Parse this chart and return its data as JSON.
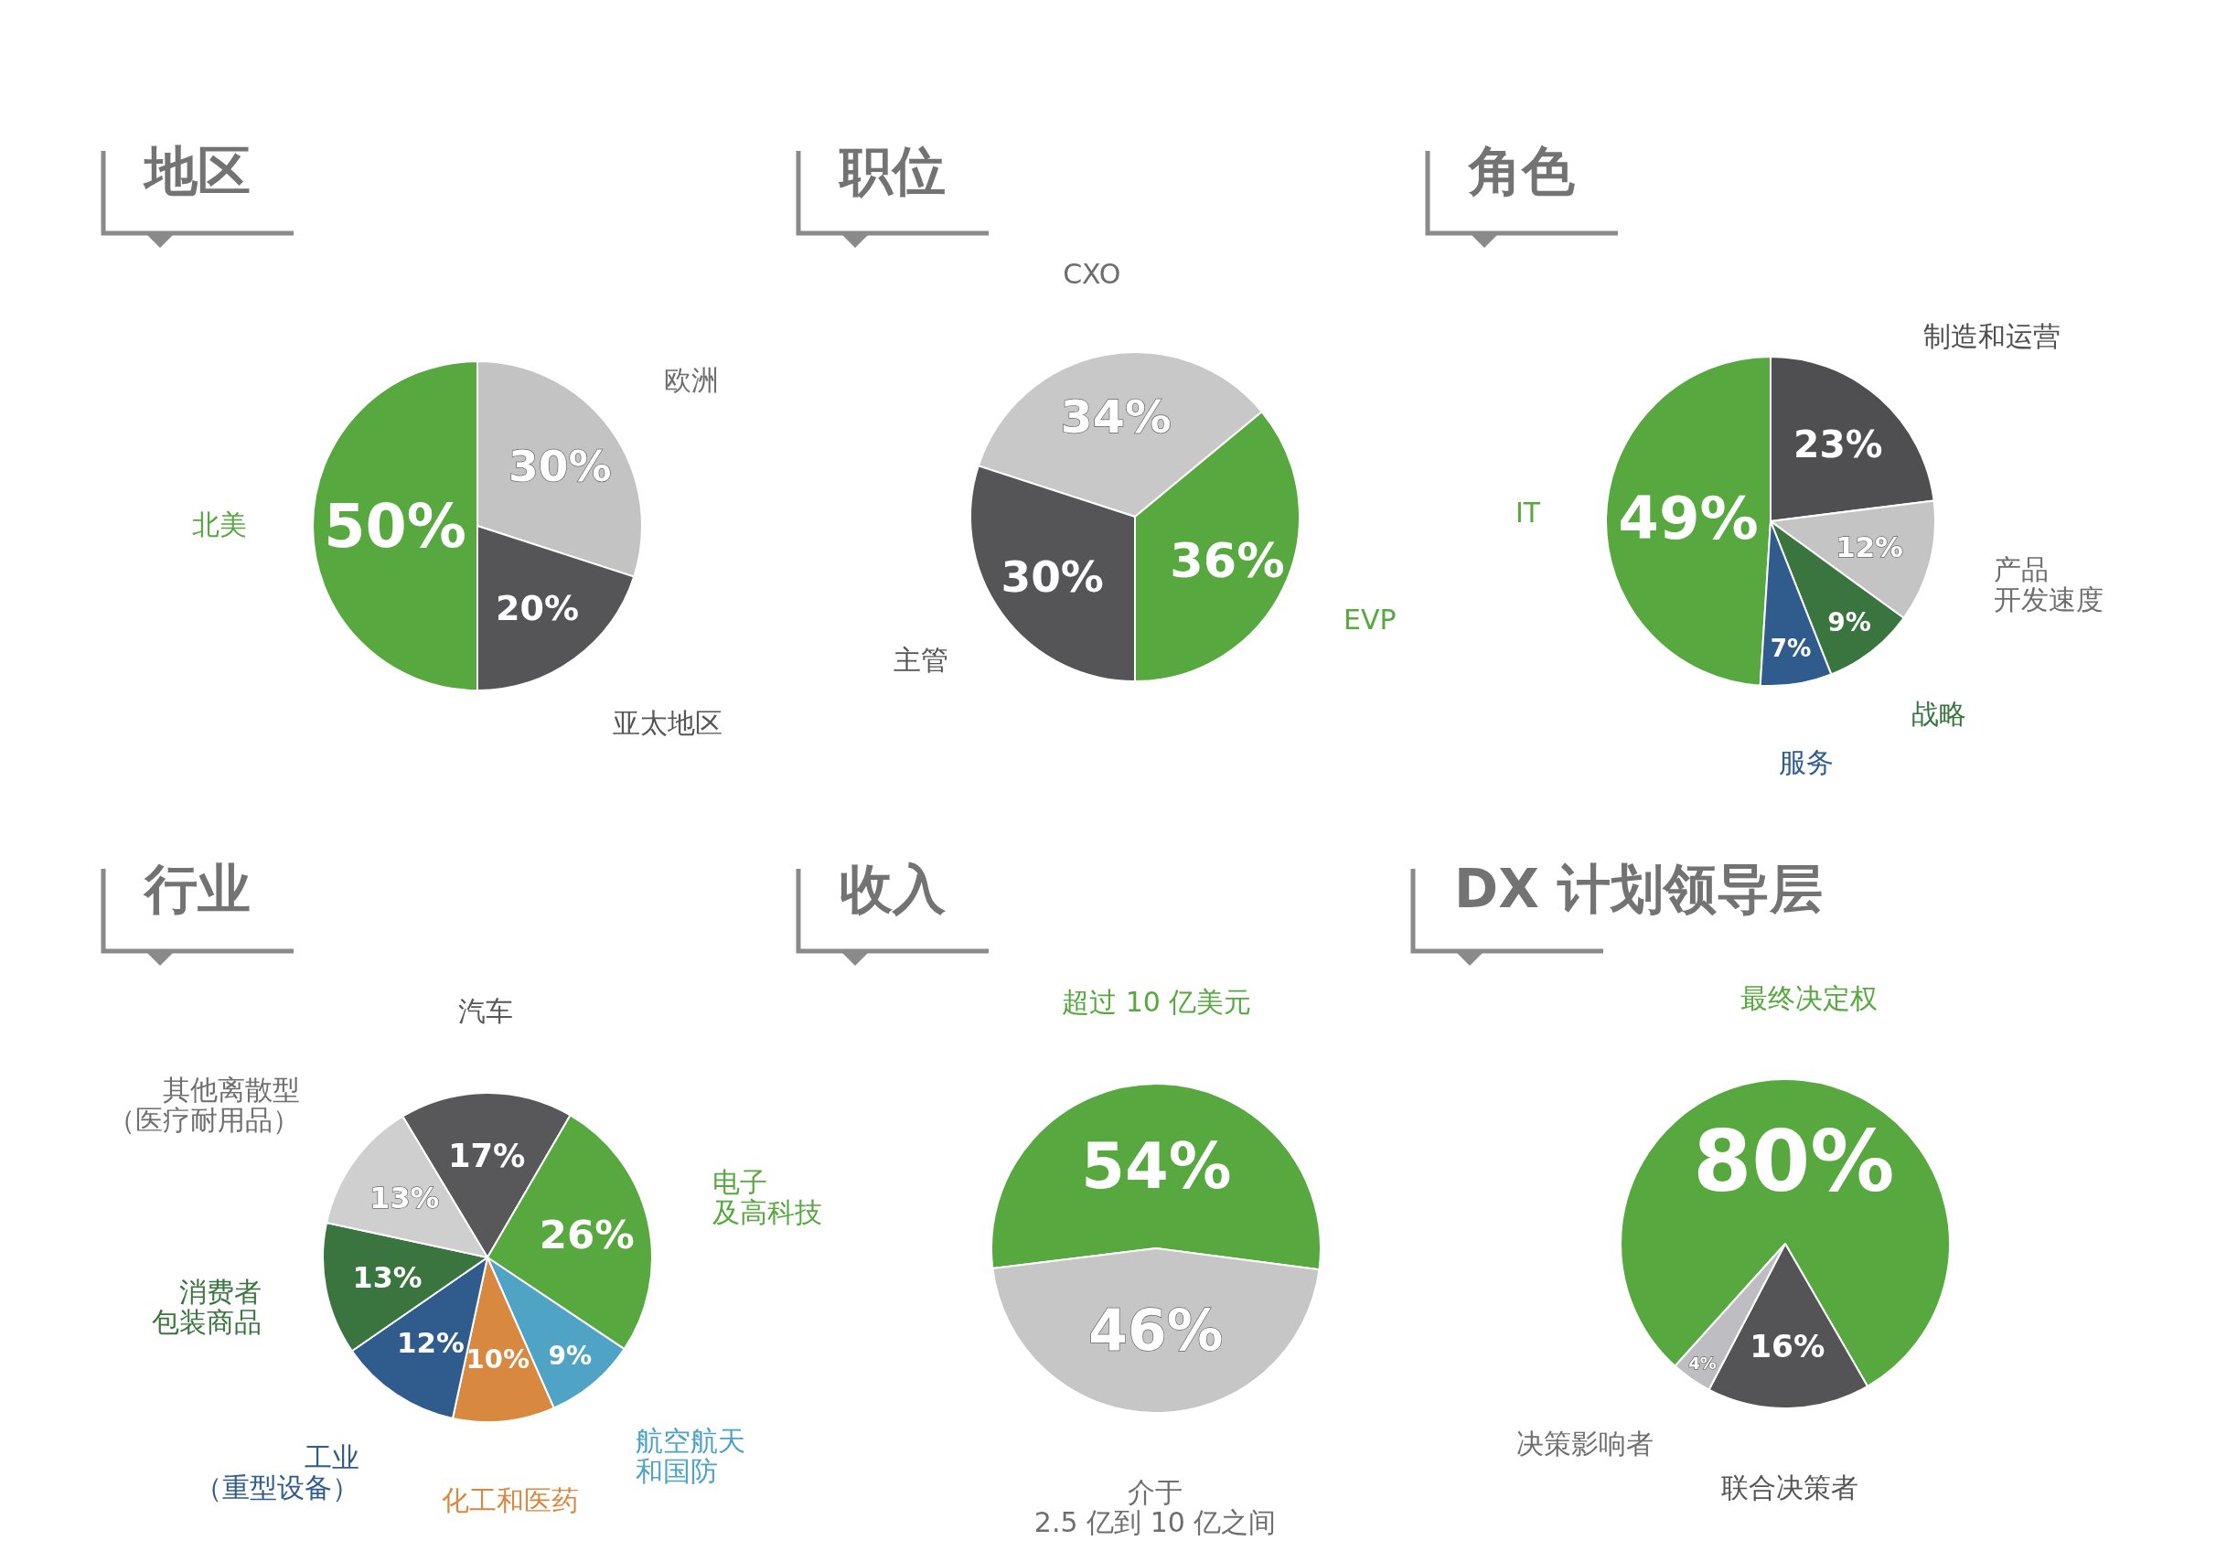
{
  "chart_data": [
    {
      "type": "pie",
      "title": "地区",
      "categories": [
        "北美",
        "欧洲",
        "亚太地区"
      ],
      "values": [
        50,
        30,
        20
      ],
      "colors": [
        "#56a83f",
        "#c3c3c3",
        "#555557"
      ],
      "value_labels": [
        "50%",
        "30%",
        "20%"
      ]
    },
    {
      "type": "pie",
      "title": "职位",
      "categories": [
        "CXO",
        "EVP",
        "主管"
      ],
      "values": [
        34,
        36,
        30
      ],
      "colors": [
        "#c8c8c8",
        "#56a83f",
        "#555557"
      ],
      "value_labels": [
        "34%",
        "36%",
        "30%"
      ]
    },
    {
      "type": "pie",
      "title": "角色",
      "categories": [
        "IT",
        "制造和运营",
        "产品开发速度",
        "战略",
        "服务"
      ],
      "values": [
        49,
        23,
        12,
        9,
        7
      ],
      "colors": [
        "#56a83f",
        "#4f4f51",
        "#c4c4c4",
        "#3a7540",
        "#2f5b8d"
      ],
      "value_labels": [
        "49%",
        "23%",
        "12%",
        "9%",
        "7%"
      ]
    },
    {
      "type": "pie",
      "title": "行业",
      "categories": [
        "汽车",
        "电子及高科技",
        "航空航天和国防",
        "化工和医药",
        "工业（重型设备）",
        "消费者包装商品",
        "其他离散型（医疗耐用品）"
      ],
      "values": [
        17,
        26,
        9,
        10,
        12,
        13,
        13
      ],
      "colors": [
        "#58585a",
        "#56a83f",
        "#4fa3c4",
        "#d9883f",
        "#2f5b8d",
        "#3a7540",
        "#cfcfcf"
      ],
      "value_labels": [
        "17%",
        "26%",
        "9%",
        "10%",
        "12%",
        "13%",
        "13%"
      ]
    },
    {
      "type": "pie",
      "title": "收入",
      "categories": [
        "超过 10 亿美元",
        "介于 2.5 亿到 10 亿之间"
      ],
      "values": [
        54,
        46
      ],
      "colors": [
        "#56a83f",
        "#c6c6c6"
      ],
      "value_labels": [
        "54%",
        "46%"
      ]
    },
    {
      "type": "pie",
      "title": "DX 计划领导层",
      "categories": [
        "最终决定权",
        "联合决策者",
        "决策影响者"
      ],
      "values": [
        80,
        16,
        4
      ],
      "colors": [
        "#56a83f",
        "#545456",
        "#bdbdc2"
      ],
      "value_labels": [
        "80%",
        "16%",
        "4%"
      ]
    }
  ]
}
